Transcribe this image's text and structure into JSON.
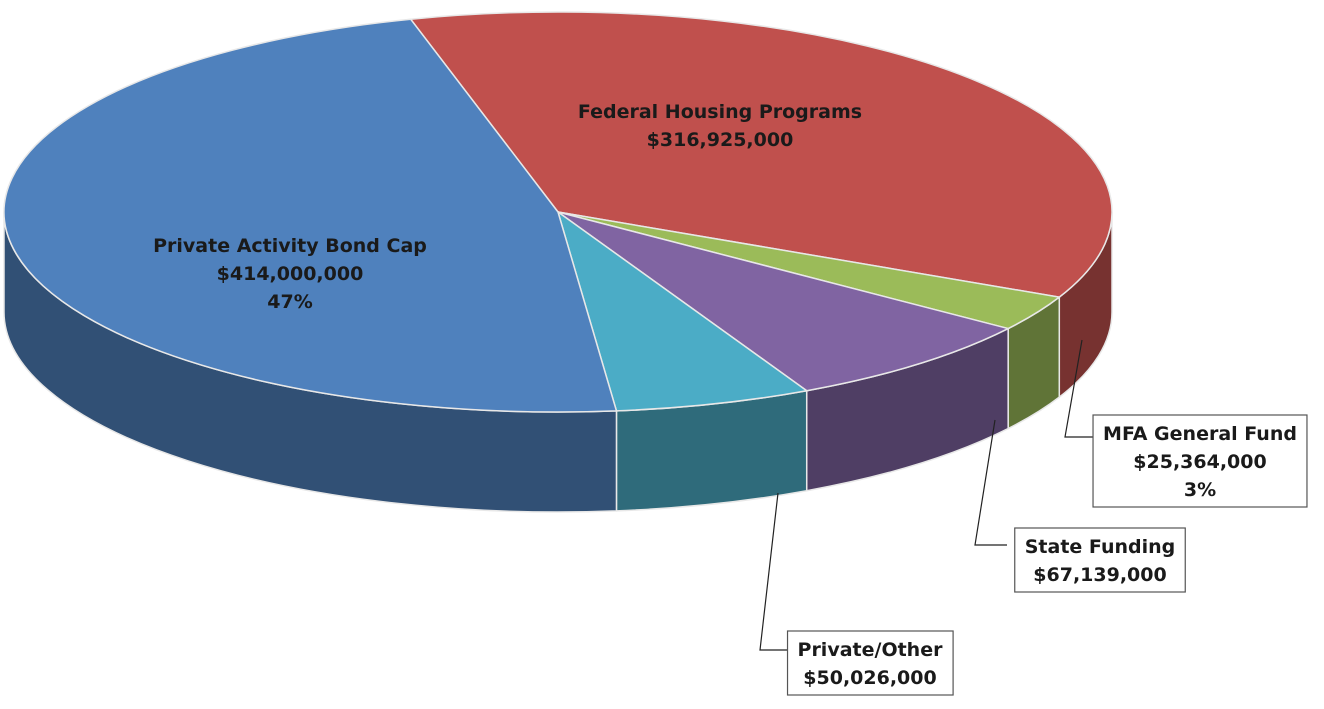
{
  "chart_data": {
    "type": "pie",
    "categories": [
      "Federal Housing Programs",
      "MFA General Fund",
      "State Funding",
      "Private/Other",
      "Private Activity Bond Cap"
    ],
    "values": [
      316925000,
      25364000,
      67139000,
      50026000,
      414000000
    ],
    "value_labels": [
      "$316,925,000",
      "$25,364,000",
      "$67,139,000",
      "$50,026,000",
      "$414,000,000"
    ],
    "percent_labels": [
      "",
      "3%",
      "",
      "",
      "47%"
    ],
    "colors": [
      "#c0504d",
      "#9bbb59",
      "#8064a2",
      "#4bacc6",
      "#4f81bd"
    ]
  }
}
